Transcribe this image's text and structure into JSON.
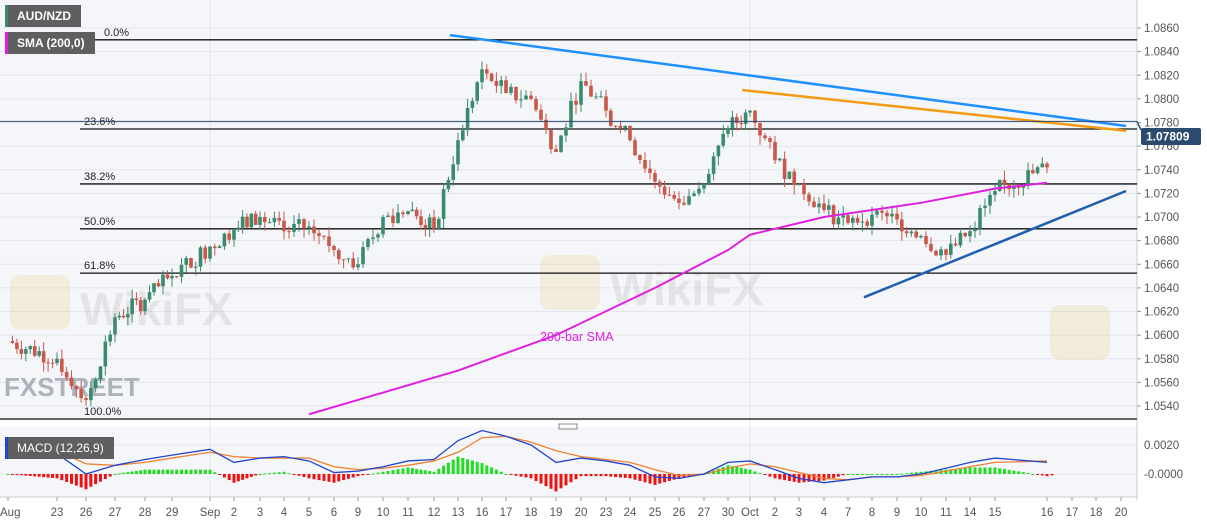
{
  "header": {
    "symbol": "AUD/NZD",
    "symbol_color": "#3a8a6e",
    "indicator": "SMA (200,0)",
    "indicator_color": "#e020e0"
  },
  "macd_panel": {
    "label": "MACD (12,26,9)",
    "label_color": "#2244cc"
  },
  "watermarks": {
    "wikifx": "WikiFX",
    "fxstreet": "FXSTREET"
  },
  "annotations": {
    "sma_label": "200-bar SMA"
  },
  "price_badge": "1.07809",
  "chart_data": [
    {
      "type": "candlestick",
      "title": "AUD/NZD",
      "x_labels": [
        "Aug",
        "23",
        "26",
        "27",
        "28",
        "29",
        "Sep",
        "2",
        "3",
        "4",
        "5",
        "6",
        "9",
        "10",
        "11",
        "12",
        "13",
        "16",
        "17",
        "18",
        "19",
        "20",
        "23",
        "24",
        "25",
        "26",
        "27",
        "30",
        "Oct",
        "2",
        "3",
        "4",
        "7",
        "8",
        "9",
        "10",
        "11",
        "14",
        "15",
        "16",
        "17",
        "18",
        "20"
      ],
      "approx_closes": [
        1.0595,
        1.058,
        1.0545,
        1.0615,
        1.063,
        1.065,
        1.0675,
        1.069,
        1.07,
        1.0688,
        1.0692,
        1.0672,
        1.066,
        1.07,
        1.0705,
        1.069,
        1.0765,
        1.0825,
        1.0805,
        1.08,
        1.0755,
        1.0815,
        1.079,
        1.0765,
        1.073,
        1.0712,
        1.0728,
        1.0775,
        1.079,
        1.0748,
        1.0728,
        1.0706,
        1.0695,
        1.0702,
        1.0698,
        1.0684,
        1.0668,
        1.0688,
        1.0722,
        1.0742,
        1.0768,
        1.0762,
        1.07809
      ],
      "y_ticks": [
        "1.0540",
        "1.0560",
        "1.0580",
        "1.0600",
        "1.0620",
        "1.0640",
        "1.0660",
        "1.0680",
        "1.0700",
        "1.0720",
        "1.0740",
        "1.0760",
        "1.0780",
        "1.0800",
        "1.0820",
        "1.0840",
        "1.0860"
      ],
      "ylim": [
        1.053,
        1.0865
      ],
      "last_price": 1.07809,
      "sma_200": {
        "name": "SMA (200,0)",
        "color": "#e020e0",
        "points": [
          [
            "5",
            1.0533
          ],
          [
            "13",
            1.057
          ],
          [
            "19",
            1.06
          ],
          [
            "25",
            1.064
          ],
          [
            "30",
            1.0672
          ],
          [
            "Oct",
            1.0685
          ],
          [
            "4",
            1.07
          ],
          [
            "10",
            1.0712
          ],
          [
            "15",
            1.0724
          ],
          [
            "16",
            1.0729
          ]
        ]
      },
      "fibonacci": [
        {
          "label": "0.0%",
          "price": 1.085
        },
        {
          "label": "23.6%",
          "price": 1.07745
        },
        {
          "label": "38.2%",
          "price": 1.0728
        },
        {
          "label": "50.0%",
          "price": 1.069
        },
        {
          "label": "61.8%",
          "price": 1.06525
        },
        {
          "label": "100.0%",
          "price": 1.0529
        }
      ],
      "trendlines": [
        {
          "color": "#1e90ff",
          "from": [
            "13",
            1.0854
          ],
          "to": [
            "20",
            1.0777
          ]
        },
        {
          "color": "#f39c12",
          "from": [
            "Oct",
            1.08075
          ],
          "to": [
            "20",
            1.0773
          ]
        },
        {
          "color": "#1f5fb0",
          "from": [
            "8",
            1.0632
          ],
          "to": [
            "20",
            1.0722
          ]
        }
      ],
      "colors": {
        "up": "#3a8a6e",
        "down": "#c9574a"
      }
    },
    {
      "type": "line",
      "title": "MACD (12,26,9)",
      "y_ticks": [
        "0.0020",
        "-0.0000"
      ],
      "x_labels_ref": "same as price chart",
      "macd": [
        0.0014,
        0.0014,
        0.0,
        0.0006,
        0.001,
        0.0013,
        0.0017,
        0.0008,
        0.0011,
        0.0012,
        0.0009,
        0.0001,
        0.0002,
        0.0005,
        0.0009,
        0.001,
        0.0023,
        0.003,
        0.0026,
        0.002,
        0.0008,
        0.0011,
        0.0009,
        0.0006,
        -0.0002,
        -0.0003,
        0.0,
        0.0008,
        0.0009,
        0.0003,
        -0.0003,
        -0.0006,
        -0.0004,
        -0.0002,
        -0.0002,
        0.0,
        0.0004,
        0.0008,
        0.0011,
        0.0008,
        0.0009,
        0.0009,
        0.0009
      ],
      "signal": [
        0.0014,
        0.0016,
        0.0007,
        0.0006,
        0.0008,
        0.0011,
        0.0015,
        0.0012,
        0.0011,
        0.0011,
        0.0011,
        0.0005,
        0.0003,
        0.0004,
        0.0006,
        0.0009,
        0.0015,
        0.0025,
        0.0026,
        0.0022,
        0.0016,
        0.0012,
        0.001,
        0.0008,
        0.0003,
        -0.0001,
        0.0,
        0.0004,
        0.0007,
        0.0005,
        0.0001,
        -0.0003,
        -0.0004,
        -0.0002,
        -0.0002,
        -0.0001,
        0.0002,
        0.0005,
        0.0008,
        0.0009,
        0.0008,
        0.0008,
        0.0008
      ],
      "colors": {
        "macd": "#2244cc",
        "signal": "#f08030",
        "hist_up": "#22dd22",
        "hist_down": "#ee1111"
      }
    }
  ]
}
